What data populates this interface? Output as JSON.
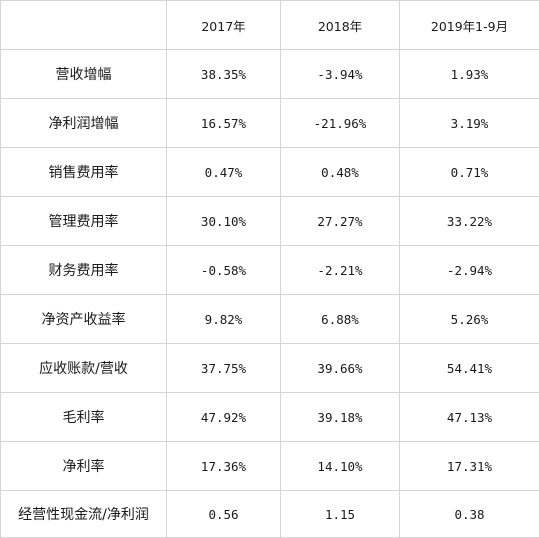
{
  "table": {
    "headers": [
      "",
      "2017年",
      "2018年",
      "2019年1-9月"
    ],
    "rows": [
      {
        "label": "营收增幅",
        "values": [
          "38.35%",
          "-3.94%",
          "1.93%"
        ]
      },
      {
        "label": "净利润增幅",
        "values": [
          "16.57%",
          "-21.96%",
          "3.19%"
        ]
      },
      {
        "label": "销售费用率",
        "values": [
          "0.47%",
          "0.48%",
          "0.71%"
        ]
      },
      {
        "label": "管理费用率",
        "values": [
          "30.10%",
          "27.27%",
          "33.22%"
        ]
      },
      {
        "label": "财务费用率",
        "values": [
          "-0.58%",
          "-2.21%",
          "-2.94%"
        ]
      },
      {
        "label": "净资产收益率",
        "values": [
          "9.82%",
          "6.88%",
          "5.26%"
        ]
      },
      {
        "label": "应收账款/营收",
        "values": [
          "37.75%",
          "39.66%",
          "54.41%"
        ]
      },
      {
        "label": "毛利率",
        "values": [
          "47.92%",
          "39.18%",
          "47.13%"
        ]
      },
      {
        "label": "净利率",
        "values": [
          "17.36%",
          "14.10%",
          "17.31%"
        ]
      },
      {
        "label": "经营性现金流/净利润",
        "values": [
          "0.56",
          "1.15",
          "0.38"
        ]
      }
    ]
  }
}
